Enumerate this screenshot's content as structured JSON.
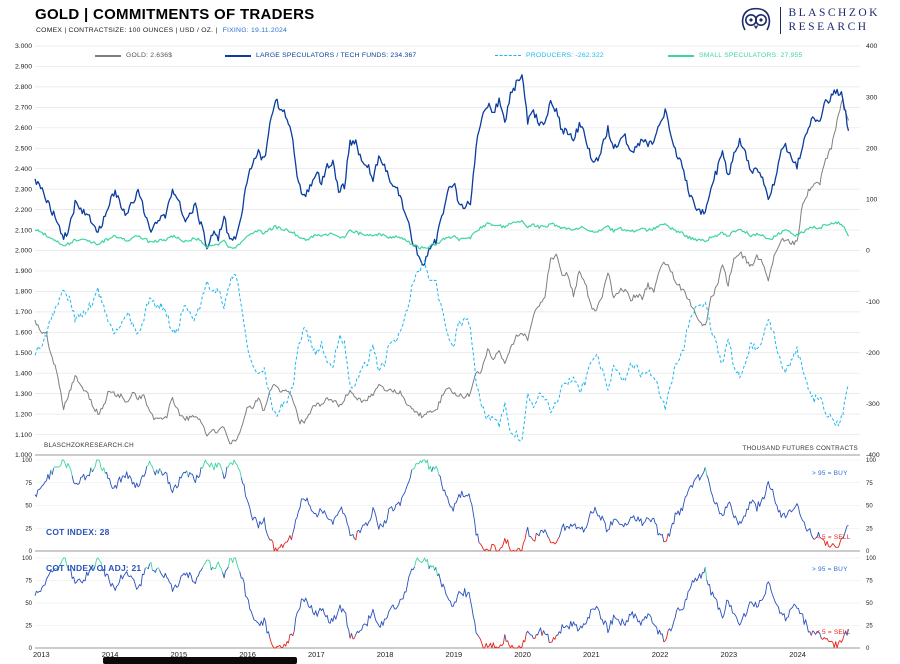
{
  "header": {
    "title": "GOLD | COMMITMENTS OF TRADERS",
    "subtitle_prefix": "COMEX | CONTRACTSIZE: 100 OUNCES | USD / OZ. | ",
    "subtitle_fixing": "FIXING: 19.11.2024",
    "logo_line1": "BLASCHZOK",
    "logo_line2": "RESEARCH"
  },
  "colors": {
    "gold": "#7f7f7f",
    "large_specs": "#0a3d9e",
    "producers": "#1db8ef",
    "small_specs": "#3fd69e",
    "osc_blue": "#2a52be",
    "osc_red": "#e8231a",
    "osc_green": "#3fd69e",
    "fixing_blue": "#2b6fd4",
    "buy_blue": "#2b6fd4",
    "sell_red": "#e8231a",
    "logo_navy": "#1b2a6b",
    "gold_legend_text": "#555555"
  },
  "chart_data": [
    {
      "type": "line",
      "title": "GOLD | COMMITMENTS OF TRADERS",
      "x_start_year": 2013,
      "x_resolution": "monthly",
      "x_tick_labels": [
        "2013",
        "2014",
        "2015",
        "2016",
        "2017",
        "2018",
        "2019",
        "2020",
        "2021",
        "2022",
        "2023",
        "2024"
      ],
      "watermark": "BLASCHZOKRESEARCH.CH",
      "left_axis": {
        "min": 1000,
        "max": 3000,
        "tick_labels": [
          "3.000",
          "2.900",
          "2.800",
          "2.700",
          "2.600",
          "2.500",
          "2.400",
          "2.300",
          "2.200",
          "2.100",
          "2.000",
          "1.900",
          "1.800",
          "1.700",
          "1.600",
          "1.500",
          "1.400",
          "1.300",
          "1.200",
          "1.100",
          "1.000"
        ]
      },
      "right_axis": {
        "min": -400,
        "max": 400,
        "units": "THOUSAND FUTURES CONTRACTS",
        "tick_labels": [
          "400",
          "300",
          "200",
          "100",
          "0",
          "-100",
          "-200",
          "-300",
          "-400"
        ]
      },
      "series": [
        {
          "name": "GOLD",
          "legend": "GOLD: 2.636$",
          "current": 2636,
          "axis": "left",
          "style": "solid",
          "color_key": "gold",
          "values": [
            1660,
            1600,
            1590,
            1470,
            1390,
            1230,
            1310,
            1390,
            1330,
            1320,
            1250,
            1200,
            1240,
            1320,
            1290,
            1290,
            1250,
            1310,
            1280,
            1290,
            1210,
            1170,
            1180,
            1190,
            1280,
            1210,
            1180,
            1180,
            1190,
            1170,
            1090,
            1130,
            1110,
            1140,
            1060,
            1060,
            1120,
            1230,
            1230,
            1290,
            1210,
            1320,
            1350,
            1310,
            1320,
            1270,
            1170,
            1150,
            1210,
            1250,
            1250,
            1270,
            1270,
            1240,
            1270,
            1320,
            1280,
            1270,
            1270,
            1300,
            1340,
            1320,
            1320,
            1310,
            1300,
            1250,
            1220,
            1200,
            1190,
            1210,
            1220,
            1280,
            1320,
            1310,
            1290,
            1280,
            1300,
            1410,
            1410,
            1520,
            1470,
            1510,
            1460,
            1520,
            1580,
            1590,
            1570,
            1690,
            1730,
            1780,
            1970,
            1970,
            1890,
            1880,
            1780,
            1900,
            1850,
            1730,
            1710,
            1770,
            1900,
            1770,
            1810,
            1810,
            1760,
            1780,
            1770,
            1830,
            1800,
            1910,
            1940,
            1900,
            1840,
            1810,
            1770,
            1710,
            1660,
            1630,
            1770,
            1820,
            1930,
            1830,
            1970,
            1990,
            1960,
            1920,
            1970,
            1940,
            1850,
            1980,
            2040,
            2060,
            2040,
            2040,
            2230,
            2290,
            2330,
            2330,
            2450,
            2500,
            2630,
            2740,
            2636
          ]
        },
        {
          "name": "LARGE SPECULATORS / TECH FUNDS",
          "legend": "LARGE SPECULATORS / TECH FUNDS: 234.367",
          "current": 234.367,
          "axis": "right",
          "style": "solid",
          "color_key": "large_specs",
          "values": [
            140,
            120,
            100,
            75,
            55,
            25,
            45,
            90,
            80,
            70,
            55,
            35,
            60,
            95,
            115,
            90,
            70,
            95,
            115,
            80,
            40,
            55,
            60,
            75,
            115,
            100,
            60,
            70,
            85,
            50,
            10,
            35,
            25,
            65,
            20,
            25,
            65,
            135,
            175,
            195,
            175,
            245,
            295,
            275,
            260,
            220,
            130,
            105,
            125,
            155,
            135,
            165,
            175,
            120,
            125,
            215,
            210,
            180,
            170,
            135,
            185,
            170,
            130,
            125,
            100,
            60,
            15,
            -10,
            -25,
            10,
            15,
            65,
            115,
            135,
            95,
            85,
            95,
            205,
            255,
            285,
            270,
            295,
            250,
            305,
            325,
            345,
            250,
            270,
            250,
            255,
            290,
            270,
            235,
            230,
            215,
            245,
            230,
            180,
            175,
            205,
            240,
            200,
            215,
            225,
            190,
            200,
            215,
            205,
            215,
            250,
            275,
            230,
            185,
            170,
            120,
            90,
            80,
            75,
            125,
            155,
            190,
            145,
            195,
            215,
            190,
            150,
            165,
            140,
            105,
            135,
            185,
            205,
            185,
            165,
            205,
            245,
            260,
            255,
            290,
            300,
            315,
            300,
            234
          ]
        },
        {
          "name": "PRODUCERS",
          "legend": "PRODUCERS: -262.322",
          "current": -262.322,
          "axis": "right",
          "style": "dashed",
          "color_key": "producers",
          "values": [
            -205,
            -185,
            -160,
            -130,
            -105,
            -75,
            -95,
            -135,
            -125,
            -115,
            -100,
            -80,
            -110,
            -145,
            -165,
            -140,
            -120,
            -145,
            -165,
            -130,
            -90,
            -105,
            -110,
            -125,
            -165,
            -150,
            -110,
            -120,
            -135,
            -100,
            -60,
            -85,
            -75,
            -115,
            -60,
            -45,
            -105,
            -185,
            -225,
            -245,
            -225,
            -290,
            -325,
            -305,
            -295,
            -265,
            -180,
            -155,
            -175,
            -205,
            -185,
            -215,
            -225,
            -170,
            -175,
            -265,
            -260,
            -230,
            -220,
            -185,
            -235,
            -220,
            -180,
            -175,
            -150,
            -110,
            -65,
            -40,
            -25,
            -60,
            -65,
            -115,
            -165,
            -185,
            -145,
            -135,
            -145,
            -255,
            -305,
            -330,
            -320,
            -340,
            -300,
            -350,
            -360,
            -370,
            -280,
            -300,
            -285,
            -285,
            -320,
            -300,
            -265,
            -260,
            -245,
            -275,
            -260,
            -215,
            -205,
            -235,
            -270,
            -230,
            -245,
            -255,
            -220,
            -230,
            -245,
            -235,
            -245,
            -280,
            -305,
            -260,
            -215,
            -200,
            -150,
            -120,
            -110,
            -105,
            -155,
            -185,
            -225,
            -175,
            -225,
            -245,
            -220,
            -180,
            -195,
            -170,
            -135,
            -165,
            -215,
            -235,
            -215,
            -195,
            -235,
            -270,
            -290,
            -285,
            -320,
            -330,
            -340,
            -320,
            -262
          ]
        },
        {
          "name": "SMALL SPECULATORS",
          "legend": "SMALL SPECULATORS: 27.955",
          "current": 27.955,
          "axis": "right",
          "style": "solid",
          "color_key": "small_specs",
          "values": [
            40,
            36,
            30,
            24,
            18,
            8,
            14,
            22,
            20,
            20,
            16,
            12,
            18,
            24,
            28,
            24,
            20,
            25,
            28,
            24,
            16,
            18,
            20,
            22,
            28,
            26,
            18,
            20,
            24,
            18,
            6,
            12,
            10,
            18,
            6,
            4,
            16,
            28,
            34,
            38,
            34,
            42,
            46,
            42,
            40,
            36,
            26,
            22,
            24,
            30,
            28,
            32,
            34,
            26,
            28,
            38,
            36,
            32,
            32,
            26,
            32,
            30,
            26,
            26,
            24,
            18,
            10,
            6,
            4,
            10,
            12,
            20,
            24,
            28,
            22,
            22,
            24,
            38,
            46,
            52,
            48,
            50,
            44,
            52,
            56,
            58,
            46,
            50,
            46,
            46,
            52,
            50,
            44,
            44,
            40,
            46,
            44,
            36,
            34,
            40,
            46,
            38,
            42,
            42,
            38,
            40,
            42,
            40,
            42,
            48,
            52,
            44,
            36,
            34,
            26,
            22,
            20,
            18,
            26,
            30,
            36,
            28,
            36,
            42,
            36,
            30,
            32,
            28,
            22,
            26,
            34,
            38,
            34,
            30,
            36,
            44,
            46,
            44,
            50,
            52,
            54,
            50,
            28
          ]
        }
      ]
    },
    {
      "type": "line",
      "label": "COT INDEX: 28",
      "current": 28,
      "buy_note": "> 95 = BUY",
      "sell_note": "< 5 = SELL",
      "axis": {
        "min": 0,
        "max": 100,
        "tick_labels": [
          "100",
          "75",
          "50",
          "25",
          "0"
        ]
      },
      "values": [
        62,
        68,
        78,
        88,
        92,
        100,
        92,
        72,
        78,
        82,
        90,
        100,
        88,
        78,
        68,
        80,
        86,
        78,
        68,
        84,
        96,
        88,
        86,
        82,
        68,
        74,
        86,
        82,
        78,
        88,
        100,
        90,
        95,
        82,
        98,
        100,
        85,
        58,
        38,
        28,
        34,
        12,
        0,
        5,
        8,
        18,
        48,
        58,
        50,
        40,
        46,
        34,
        30,
        46,
        44,
        14,
        15,
        26,
        30,
        46,
        26,
        30,
        46,
        48,
        56,
        72,
        92,
        100,
        100,
        92,
        90,
        74,
        56,
        46,
        62,
        64,
        58,
        18,
        5,
        0,
        4,
        0,
        14,
        2,
        0,
        2,
        22,
        12,
        20,
        20,
        8,
        12,
        26,
        26,
        32,
        22,
        26,
        42,
        45,
        34,
        22,
        36,
        32,
        28,
        40,
        36,
        30,
        36,
        32,
        18,
        10,
        24,
        42,
        46,
        64,
        76,
        82,
        88,
        64,
        52,
        38,
        56,
        38,
        30,
        40,
        54,
        48,
        56,
        74,
        60,
        42,
        36,
        44,
        50,
        36,
        22,
        16,
        18,
        10,
        6,
        4,
        12,
        28
      ]
    },
    {
      "type": "line",
      "label": "COT INDEX OI ADJ: 21",
      "current": 21,
      "buy_note": "> 95 = BUY",
      "sell_note": "< 5 = SELL",
      "axis": {
        "min": 0,
        "max": 100,
        "tick_labels": [
          "100",
          "75",
          "50",
          "25",
          "0"
        ]
      },
      "values": [
        58,
        64,
        74,
        85,
        90,
        100,
        90,
        70,
        75,
        80,
        88,
        98,
        85,
        75,
        65,
        78,
        84,
        75,
        65,
        82,
        94,
        86,
        84,
        80,
        65,
        70,
        84,
        80,
        75,
        86,
        100,
        88,
        93,
        80,
        96,
        100,
        82,
        55,
        35,
        25,
        30,
        10,
        0,
        4,
        6,
        15,
        45,
        55,
        48,
        38,
        44,
        32,
        28,
        44,
        42,
        12,
        13,
        24,
        28,
        44,
        24,
        28,
        44,
        46,
        54,
        70,
        90,
        100,
        98,
        90,
        88,
        72,
        54,
        44,
        60,
        62,
        56,
        16,
        4,
        0,
        3,
        0,
        12,
        1,
        0,
        1,
        20,
        10,
        18,
        18,
        6,
        10,
        24,
        24,
        30,
        20,
        24,
        40,
        43,
        32,
        20,
        34,
        30,
        26,
        38,
        34,
        28,
        34,
        30,
        16,
        8,
        22,
        40,
        44,
        62,
        74,
        80,
        86,
        62,
        50,
        36,
        54,
        36,
        28,
        38,
        52,
        46,
        54,
        72,
        58,
        40,
        34,
        42,
        48,
        34,
        20,
        14,
        16,
        8,
        4,
        2,
        10,
        21
      ]
    }
  ]
}
